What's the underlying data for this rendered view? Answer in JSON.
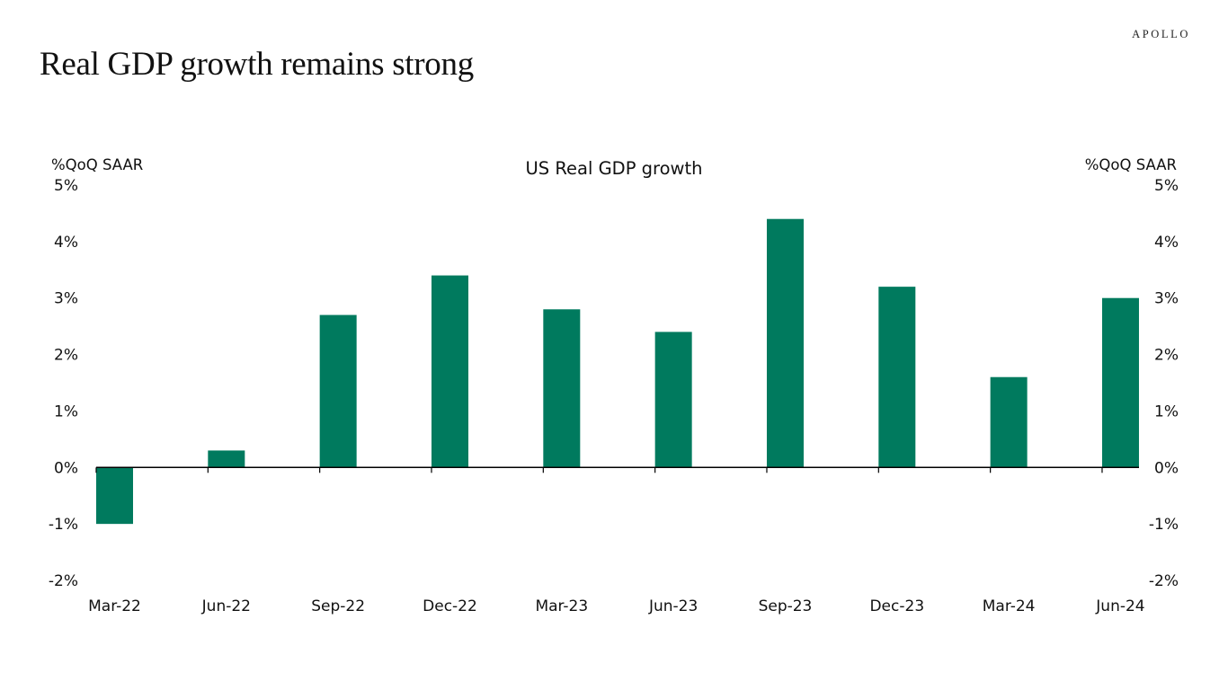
{
  "slide": {
    "title": "Real GDP growth remains strong",
    "brand": "APOLLO"
  },
  "colors": {
    "bar": "#007A5E",
    "axis": "#000000",
    "text": "#111111"
  },
  "chart_data": {
    "type": "bar",
    "title": "US Real GDP growth",
    "ylabel": "%QoQ SAAR",
    "ylabel_right": "%QoQ SAAR",
    "xlabel": "",
    "categories": [
      "Mar-22",
      "Jun-22",
      "Sep-22",
      "Dec-22",
      "Mar-23",
      "Jun-23",
      "Sep-23",
      "Dec-23",
      "Mar-24",
      "Jun-24"
    ],
    "values": [
      -1.0,
      0.3,
      2.7,
      3.4,
      2.8,
      2.4,
      4.4,
      3.2,
      1.6,
      3.0
    ],
    "ylim": [
      -2,
      5
    ],
    "yticks": [
      5,
      4,
      3,
      2,
      1,
      0,
      -1,
      -2
    ],
    "ytick_labels": [
      "5%",
      "4%",
      "3%",
      "2%",
      "1%",
      "0%",
      "-1%",
      "-2%"
    ],
    "dual_y_axis": true,
    "grid": false,
    "legend": "none"
  }
}
